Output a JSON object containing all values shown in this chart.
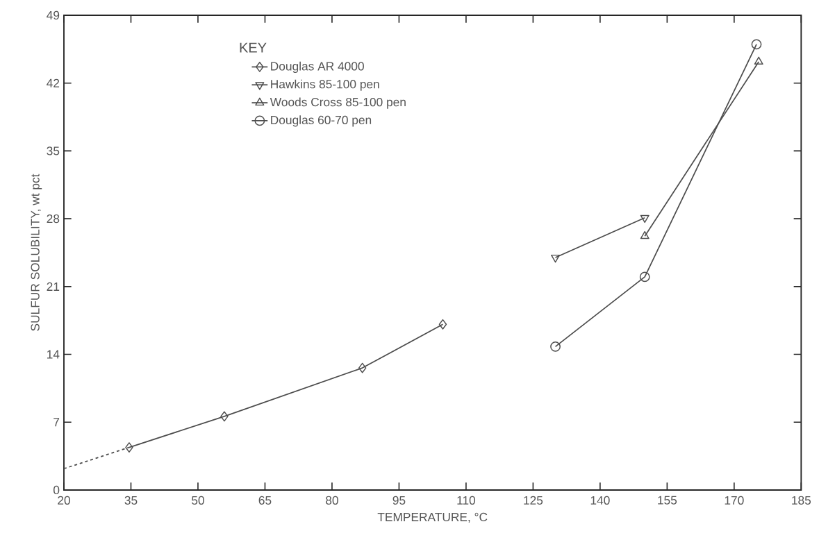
{
  "chart_data": {
    "type": "line",
    "xlabel": "TEMPERATURE, °C",
    "ylabel": "SULFUR SOLUBILITY, wt pct",
    "legend_title": "KEY",
    "legend": "top left",
    "xlim": [
      20,
      185
    ],
    "ylim": [
      0,
      49
    ],
    "xticks": [
      20,
      35,
      50,
      65,
      80,
      95,
      110,
      125,
      140,
      155,
      170,
      185
    ],
    "yticks": [
      0,
      7,
      14,
      21,
      28,
      35,
      42,
      49
    ],
    "series": [
      {
        "name": "Douglas AR 4000",
        "color": "#4d4d4d",
        "marker": "diamond",
        "line_style": "solid",
        "x": [
          34.6,
          55.9,
          86.8,
          104.8
        ],
        "values": [
          4.4,
          7.6,
          12.6,
          17.1
        ]
      },
      {
        "name": "Hawkins 85-100 pen",
        "color": "#4d4d4d",
        "marker": "triangle-down",
        "line_style": "solid",
        "x": [
          130,
          150
        ],
        "values": [
          24.0,
          28.1
        ]
      },
      {
        "name": "Woods Cross 85-100 pen",
        "color": "#4d4d4d",
        "marker": "triangle",
        "line_style": "solid",
        "x": [
          150,
          175.5
        ],
        "values": [
          26.2,
          44.2
        ]
      },
      {
        "name": "Douglas 60-70 pen",
        "color": "#4d4d4d",
        "marker": "circle",
        "line_style": "solid",
        "x": [
          130,
          150,
          175
        ],
        "values": [
          14.8,
          22.0,
          46.0
        ]
      },
      {
        "color": "#4d4d4d",
        "marker": "none",
        "line_style": "dashed",
        "x": [
          20,
          34.6
        ],
        "values": [
          2.2,
          4.4
        ]
      }
    ]
  }
}
